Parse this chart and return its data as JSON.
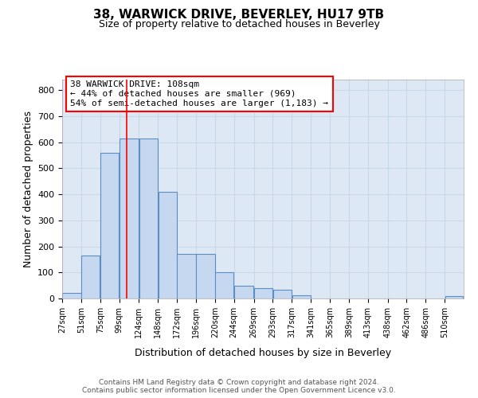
{
  "title_line1": "38, WARWICK DRIVE, BEVERLEY, HU17 9TB",
  "title_line2": "Size of property relative to detached houses in Beverley",
  "xlabel": "Distribution of detached houses by size in Beverley",
  "ylabel": "Number of detached properties",
  "footer_line1": "Contains HM Land Registry data © Crown copyright and database right 2024.",
  "footer_line2": "Contains public sector information licensed under the Open Government Licence v3.0.",
  "annotation_line1": "38 WARWICK DRIVE: 108sqm",
  "annotation_line2": "← 44% of detached houses are smaller (969)",
  "annotation_line3": "54% of semi-detached houses are larger (1,183) →",
  "bar_color": "#c5d8f0",
  "bar_edge_color": "#5b8ec4",
  "property_line_x": 108,
  "bin_edges": [
    27,
    51,
    75,
    99,
    124,
    148,
    172,
    196,
    220,
    244,
    269,
    293,
    317,
    341,
    365,
    389,
    413,
    438,
    462,
    486,
    510
  ],
  "bar_heights": [
    20,
    165,
    560,
    615,
    615,
    410,
    170,
    170,
    100,
    50,
    40,
    35,
    12,
    0,
    0,
    0,
    0,
    0,
    0,
    0,
    8
  ],
  "ylim": [
    0,
    840
  ],
  "yticks": [
    0,
    100,
    200,
    300,
    400,
    500,
    600,
    700,
    800
  ],
  "grid_color": "#c8d8e8",
  "background_color": "#dde8f4",
  "title_fontsize": 11,
  "subtitle_fontsize": 9,
  "ylabel_fontsize": 9,
  "xlabel_fontsize": 9,
  "tick_fontsize": 8,
  "annotation_fontsize": 8,
  "footer_fontsize": 6.5
}
